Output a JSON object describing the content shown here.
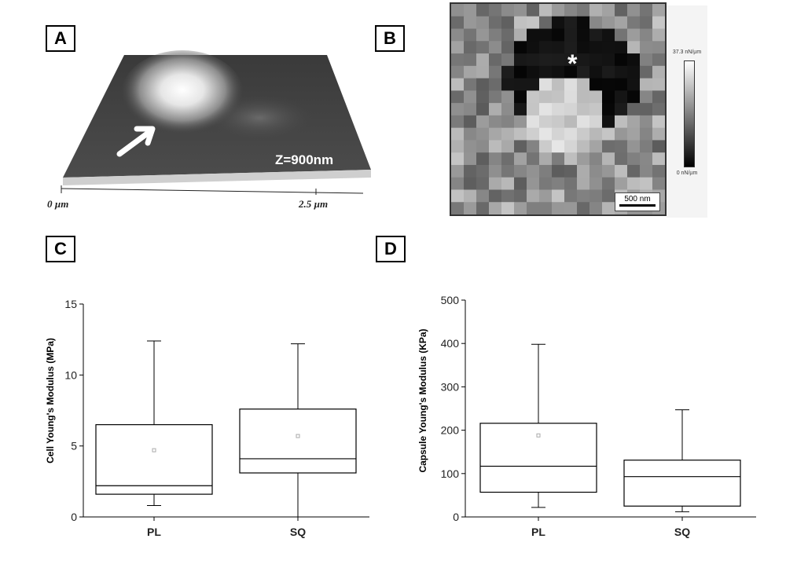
{
  "panels": {
    "a_label": "A",
    "b_label": "B",
    "c_label": "C",
    "d_label": "D"
  },
  "panel_a": {
    "z_label": "Z=900nm",
    "x_start_label": "0 µm",
    "x_end_label": "2.5 µm"
  },
  "panel_b": {
    "scale_max": "37.3 nN/µm",
    "scale_min": "0 nN/µm",
    "scalebar_label": "500 nm",
    "marker": "*"
  },
  "chart_data": [
    {
      "type": "box",
      "ylabel": "Cell Young's Modulus (MPa)",
      "ylim": [
        0,
        15
      ],
      "yticks": [
        0,
        5,
        10,
        15
      ],
      "categories": [
        "PL",
        "SQ"
      ],
      "boxes": [
        {
          "name": "PL",
          "whisker_low": 0.8,
          "q1": 1.6,
          "median": 2.2,
          "q3": 6.5,
          "whisker_high": 12.4,
          "mean": 4.7
        },
        {
          "name": "SQ",
          "whisker_low": 0.0,
          "q1": 3.1,
          "median": 4.1,
          "q3": 7.6,
          "whisker_high": 12.2,
          "mean": 5.7
        }
      ]
    },
    {
      "type": "box",
      "ylabel": "Capsule Young's Modulus (KPa)",
      "ylim": [
        0,
        500
      ],
      "yticks": [
        0,
        100,
        200,
        300,
        400,
        500
      ],
      "categories": [
        "PL",
        "SQ"
      ],
      "boxes": [
        {
          "name": "PL",
          "whisker_low": 22,
          "q1": 57,
          "median": 117,
          "q3": 216,
          "whisker_high": 398,
          "mean": 188
        },
        {
          "name": "SQ",
          "whisker_low": 12,
          "q1": 25,
          "median": 93,
          "q3": 131,
          "whisker_high": 247
        }
      ]
    }
  ]
}
